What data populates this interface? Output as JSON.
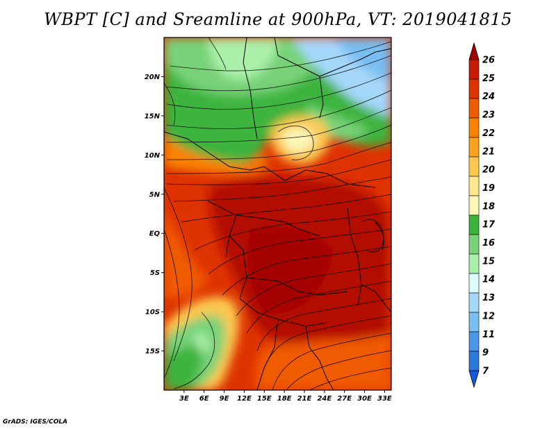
{
  "title": "WBPT [C] and Sreamline at 900hPa, VT: 2019041815",
  "credit": "GrADS: IGES/COLA",
  "map": {
    "lat_labels": [
      "20N",
      "15N",
      "10N",
      "5N",
      "EQ",
      "5S",
      "10S",
      "15S"
    ],
    "lat_values": [
      20,
      15,
      10,
      5,
      0,
      -5,
      -10,
      -15
    ],
    "lon_labels": [
      "3E",
      "6E",
      "9E",
      "12E",
      "15E",
      "18E",
      "21E",
      "24E",
      "27E",
      "30E",
      "33E"
    ],
    "lon_values": [
      3,
      6,
      9,
      12,
      15,
      18,
      21,
      24,
      27,
      30,
      33
    ],
    "extent": {
      "lon_min": 0,
      "lon_max": 34,
      "lat_min": -20,
      "lat_max": 25
    }
  },
  "colorbar": {
    "labels": [
      "26",
      "25",
      "24",
      "23",
      "22",
      "21",
      "20",
      "19",
      "18",
      "17",
      "16",
      "15",
      "14",
      "13",
      "12",
      "11",
      "9",
      "7"
    ],
    "colors": [
      "#a50000",
      "#c81a00",
      "#de3300",
      "#f05a00",
      "#fa8200",
      "#fca21e",
      "#fcc850",
      "#fde68c",
      "#fcf7b9",
      "#3cb43c",
      "#78d278",
      "#aaf0aa",
      "#dcfcfc",
      "#a5d7fa",
      "#78bef0",
      "#4b96e6",
      "#2d78dc",
      "#145adc"
    ]
  }
}
